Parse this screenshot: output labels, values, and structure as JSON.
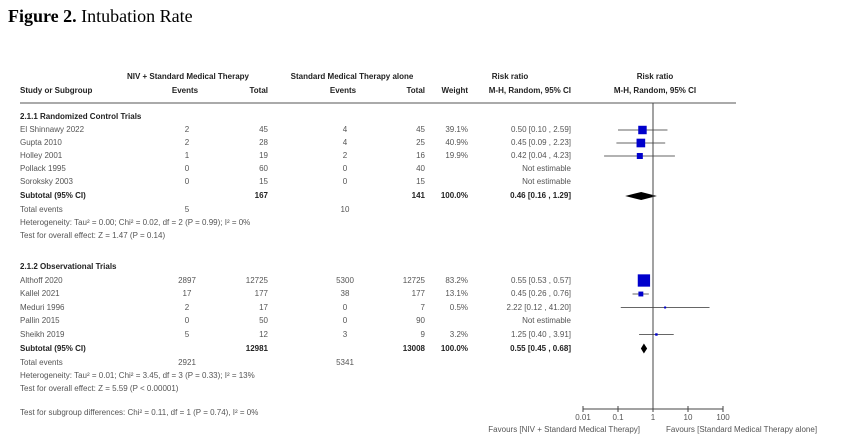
{
  "title_bold": "Figure 2.",
  "title_rest": " Intubation Rate",
  "headers": {
    "group1": "NIV + Standard Medical Therapy",
    "group2": "Standard Medical Therapy alone",
    "study": "Study or Subgroup",
    "events": "Events",
    "total": "Total",
    "weight": "Weight",
    "rr_top": "Risk ratio",
    "rr_sub": "M-H, Random, 95% CI",
    "plot_top": "Risk ratio",
    "plot_sub": "M-H, Random, 95% CI"
  },
  "chart_data": {
    "type": "forest",
    "title": "Figure 2. Intubation Rate",
    "xscale": "log",
    "xlim": [
      0.01,
      100
    ],
    "xticks": [
      "0.01",
      "0.1",
      "1",
      "10",
      "100"
    ],
    "xtick_values": [
      0.01,
      0.1,
      1,
      10,
      100
    ],
    "favours_left": "Favours [NIV + Standard Medical Therapy]",
    "favours_right": "Favours [Standard Medical Therapy alone]",
    "subgroups": [
      {
        "name": "2.1.1 Randomized Control Trials",
        "studies": [
          {
            "study": "El Shinnawy 2022",
            "e1": "2",
            "n1": "45",
            "e2": "4",
            "n2": "45",
            "weight": "39.1%",
            "ci_text": "0.50 [0.10 , 2.59]",
            "rr": 0.5,
            "lo": 0.1,
            "hi": 2.59,
            "w": 39.1
          },
          {
            "study": "Gupta 2010",
            "e1": "2",
            "n1": "28",
            "e2": "4",
            "n2": "25",
            "weight": "40.9%",
            "ci_text": "0.45 [0.09 , 2.23]",
            "rr": 0.45,
            "lo": 0.09,
            "hi": 2.23,
            "w": 40.9
          },
          {
            "study": "Holley 2001",
            "e1": "1",
            "n1": "19",
            "e2": "2",
            "n2": "16",
            "weight": "19.9%",
            "ci_text": "0.42 [0.04 , 4.23]",
            "rr": 0.42,
            "lo": 0.04,
            "hi": 4.23,
            "w": 19.9
          },
          {
            "study": "Pollack 1995",
            "e1": "0",
            "n1": "60",
            "e2": "0",
            "n2": "40",
            "weight": "",
            "ci_text": "Not estimable",
            "rr": null,
            "lo": null,
            "hi": null,
            "w": 0
          },
          {
            "study": "Soroksky 2003",
            "e1": "0",
            "n1": "15",
            "e2": "0",
            "n2": "15",
            "weight": "",
            "ci_text": "Not estimable",
            "rr": null,
            "lo": null,
            "hi": null,
            "w": 0
          }
        ],
        "subtotal": {
          "label": "Subtotal (95% CI)",
          "n1": "167",
          "n2": "141",
          "weight": "100.0%",
          "ci_text": "0.46 [0.16 , 1.29]",
          "rr": 0.46,
          "lo": 0.16,
          "hi": 1.29
        },
        "total_events_label": "Total events",
        "total_e1": "5",
        "total_e2": "10",
        "heterogeneity": "Heterogeneity: Tau² = 0.00; Chi² = 0.02, df = 2 (P = 0.99); I² = 0%",
        "overall": "Test for overall effect: Z = 1.47 (P = 0.14)"
      },
      {
        "name": "2.1.2 Observational Trials",
        "studies": [
          {
            "study": "Althoff 2020",
            "e1": "2897",
            "n1": "12725",
            "e2": "5300",
            "n2": "12725",
            "weight": "83.2%",
            "ci_text": "0.55 [0.53 , 0.57]",
            "rr": 0.55,
            "lo": 0.53,
            "hi": 0.57,
            "w": 83.2
          },
          {
            "study": "Kallel 2021",
            "e1": "17",
            "n1": "177",
            "e2": "38",
            "n2": "177",
            "weight": "13.1%",
            "ci_text": "0.45 [0.26 , 0.76]",
            "rr": 0.45,
            "lo": 0.26,
            "hi": 0.76,
            "w": 13.1
          },
          {
            "study": "Meduri 1996",
            "e1": "2",
            "n1": "17",
            "e2": "0",
            "n2": "7",
            "weight": "0.5%",
            "ci_text": "2.22 [0.12 , 41.20]",
            "rr": 2.22,
            "lo": 0.12,
            "hi": 41.2,
            "w": 0.5
          },
          {
            "study": "Pallin 2015",
            "e1": "0",
            "n1": "50",
            "e2": "0",
            "n2": "90",
            "weight": "",
            "ci_text": "Not estimable",
            "rr": null,
            "lo": null,
            "hi": null,
            "w": 0
          },
          {
            "study": "Sheikh 2019",
            "e1": "5",
            "n1": "12",
            "e2": "3",
            "n2": "9",
            "weight": "3.2%",
            "ci_text": "1.25 [0.40 , 3.91]",
            "rr": 1.25,
            "lo": 0.4,
            "hi": 3.91,
            "w": 3.2
          }
        ],
        "subtotal": {
          "label": "Subtotal (95% CI)",
          "n1": "12981",
          "n2": "13008",
          "weight": "100.0%",
          "ci_text": "0.55 [0.45 , 0.68]",
          "rr": 0.55,
          "lo": 0.45,
          "hi": 0.68
        },
        "total_events_label": "Total events",
        "total_e1": "2921",
        "total_e2": "5341",
        "heterogeneity": "Heterogeneity: Tau² = 0.01; Chi² = 3.45, df = 3 (P = 0.33); I² = 13%",
        "overall": "Test for overall effect: Z = 5.59 (P < 0.00001)"
      }
    ],
    "subgroup_test": "Test for subgroup differences: Chi² = 0.11, df = 1 (P = 0.74), I² = 0%"
  },
  "colors": {
    "marker": "#0000cc",
    "diamond": "#000000",
    "axis": "#555555"
  }
}
